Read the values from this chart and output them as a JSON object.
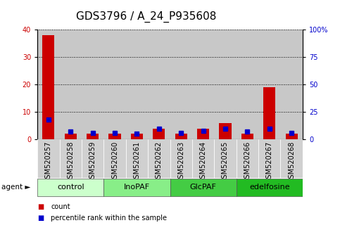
{
  "title": "GDS3796 / A_24_P935608",
  "samples": [
    "GSM520257",
    "GSM520258",
    "GSM520259",
    "GSM520260",
    "GSM520261",
    "GSM520262",
    "GSM520263",
    "GSM520264",
    "GSM520265",
    "GSM520266",
    "GSM520267",
    "GSM520268"
  ],
  "count": [
    38,
    2,
    2,
    2,
    2,
    4,
    2,
    4,
    6,
    2,
    19,
    2
  ],
  "percentile": [
    18,
    7,
    6,
    6,
    5,
    9.5,
    6,
    8,
    10,
    7,
    10,
    6
  ],
  "count_color": "#cc0000",
  "percentile_color": "#0000cc",
  "ylim_left": [
    0,
    40
  ],
  "ylim_right": [
    0,
    100
  ],
  "yticks_left": [
    0,
    10,
    20,
    30,
    40
  ],
  "yticks_right": [
    0,
    25,
    50,
    75,
    100
  ],
  "yticklabels_right": [
    "0",
    "25",
    "50",
    "75",
    "100%"
  ],
  "groups": [
    {
      "label": "control",
      "start": 0,
      "end": 3,
      "color": "#ccffcc"
    },
    {
      "label": "InoPAF",
      "start": 3,
      "end": 6,
      "color": "#88ee88"
    },
    {
      "label": "GlcPAF",
      "start": 6,
      "end": 9,
      "color": "#44cc44"
    },
    {
      "label": "edelfosine",
      "start": 9,
      "end": 12,
      "color": "#22bb22"
    }
  ],
  "agent_label": "agent",
  "legend_count_label": "count",
  "legend_percentile_label": "percentile rank within the sample",
  "bar_width": 0.55,
  "title_fontsize": 11,
  "tick_fontsize": 7,
  "label_fontsize": 8,
  "group_fontsize": 8
}
